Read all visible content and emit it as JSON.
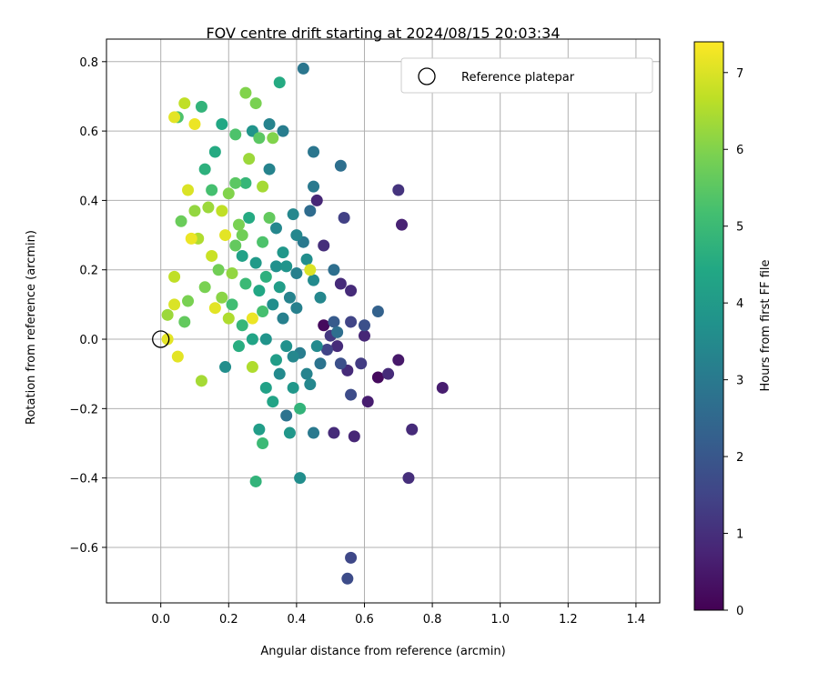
{
  "chart_data": {
    "type": "scatter",
    "title": "FOV centre drift starting at 2024/08/15 20:03:34",
    "xlabel": "Angular distance from reference (arcmin)",
    "ylabel": "Rotation from reference (arcmin)",
    "colorbar_label": "Hours from first FF file",
    "colormap": "viridis",
    "xlim": [
      -0.16,
      1.47
    ],
    "ylim": [
      -0.76,
      0.865
    ],
    "clim": [
      0,
      7.4
    ],
    "xticks": [
      0.0,
      0.2,
      0.4,
      0.6,
      0.8,
      1.0,
      1.2,
      1.4
    ],
    "xtick_labels": [
      "0.0",
      "0.2",
      "0.4",
      "0.6",
      "0.8",
      "1.0",
      "1.2",
      "1.4"
    ],
    "yticks": [
      -0.6,
      -0.4,
      -0.2,
      0.0,
      0.2,
      0.4,
      0.6,
      0.8
    ],
    "ytick_labels": [
      "−0.6",
      "−0.4",
      "−0.2",
      "0.0",
      "0.2",
      "0.4",
      "0.6",
      "0.8"
    ],
    "cticks": [
      0,
      1,
      2,
      3,
      4,
      5,
      6,
      7
    ],
    "ctick_labels": [
      "0",
      "1",
      "2",
      "3",
      "4",
      "5",
      "6",
      "7"
    ],
    "grid": true,
    "legend": {
      "placement": "top-right",
      "entries": [
        "Reference platepar"
      ]
    },
    "reference_point": {
      "x": 0.0,
      "y": 0.0
    },
    "series": [
      {
        "name": "",
        "points": [
          {
            "x": 0.83,
            "y": -0.14,
            "h": 0.6
          },
          {
            "x": 0.74,
            "y": -0.26,
            "h": 0.9
          },
          {
            "x": 0.73,
            "y": -0.4,
            "h": 1.0
          },
          {
            "x": 0.7,
            "y": 0.43,
            "h": 1.1
          },
          {
            "x": 0.71,
            "y": 0.33,
            "h": 0.7
          },
          {
            "x": 0.7,
            "y": -0.06,
            "h": 0.5
          },
          {
            "x": 0.67,
            "y": -0.1,
            "h": 0.9
          },
          {
            "x": 0.64,
            "y": -0.11,
            "h": 0.2
          },
          {
            "x": 0.64,
            "y": 0.08,
            "h": 2.3
          },
          {
            "x": 0.61,
            "y": -0.18,
            "h": 0.6
          },
          {
            "x": 0.6,
            "y": 0.01,
            "h": 0.8
          },
          {
            "x": 0.6,
            "y": 0.04,
            "h": 1.8
          },
          {
            "x": 0.59,
            "y": -0.07,
            "h": 1.3
          },
          {
            "x": 0.57,
            "y": -0.28,
            "h": 0.8
          },
          {
            "x": 0.56,
            "y": -0.16,
            "h": 1.7
          },
          {
            "x": 0.56,
            "y": 0.05,
            "h": 1.5
          },
          {
            "x": 0.56,
            "y": 0.14,
            "h": 0.9
          },
          {
            "x": 0.55,
            "y": -0.69,
            "h": 1.7
          },
          {
            "x": 0.56,
            "y": -0.63,
            "h": 1.6
          },
          {
            "x": 0.55,
            "y": -0.09,
            "h": 0.9
          },
          {
            "x": 0.53,
            "y": -0.07,
            "h": 1.8
          },
          {
            "x": 0.52,
            "y": -0.02,
            "h": 0.9
          },
          {
            "x": 0.52,
            "y": 0.02,
            "h": 2.7
          },
          {
            "x": 0.51,
            "y": 0.05,
            "h": 2.1
          },
          {
            "x": 0.51,
            "y": -0.27,
            "h": 0.9
          },
          {
            "x": 0.53,
            "y": 0.16,
            "h": 0.9
          },
          {
            "x": 0.53,
            "y": 0.5,
            "h": 2.7
          },
          {
            "x": 0.54,
            "y": 0.35,
            "h": 1.4
          },
          {
            "x": 0.51,
            "y": 0.2,
            "h": 2.7
          },
          {
            "x": 0.5,
            "y": 0.01,
            "h": 1.2
          },
          {
            "x": 0.49,
            "y": -0.03,
            "h": 1.5
          },
          {
            "x": 0.48,
            "y": 0.04,
            "h": 0.2
          },
          {
            "x": 0.48,
            "y": 0.27,
            "h": 1.0
          },
          {
            "x": 0.47,
            "y": -0.07,
            "h": 2.8
          },
          {
            "x": 0.46,
            "y": -0.02,
            "h": 3.5
          },
          {
            "x": 0.46,
            "y": 0.4,
            "h": 0.8
          },
          {
            "x": 0.45,
            "y": 0.54,
            "h": 2.9
          },
          {
            "x": 0.45,
            "y": 0.44,
            "h": 3.0
          },
          {
            "x": 0.44,
            "y": 0.37,
            "h": 2.6
          },
          {
            "x": 0.45,
            "y": 0.17,
            "h": 3.5
          },
          {
            "x": 0.44,
            "y": 0.2,
            "h": 7.0
          },
          {
            "x": 0.45,
            "y": -0.27,
            "h": 3.0
          },
          {
            "x": 0.44,
            "y": -0.13,
            "h": 3.4
          },
          {
            "x": 0.43,
            "y": -0.1,
            "h": 3.3
          },
          {
            "x": 0.42,
            "y": 0.78,
            "h": 2.9
          },
          {
            "x": 0.43,
            "y": 0.23,
            "h": 3.6
          },
          {
            "x": 0.41,
            "y": -0.4,
            "h": 3.6
          },
          {
            "x": 0.41,
            "y": -0.2,
            "h": 4.8
          },
          {
            "x": 0.41,
            "y": -0.04,
            "h": 3.1
          },
          {
            "x": 0.4,
            "y": 0.09,
            "h": 3.2
          },
          {
            "x": 0.4,
            "y": 0.3,
            "h": 3.4
          },
          {
            "x": 0.39,
            "y": 0.36,
            "h": 3.4
          },
          {
            "x": 0.39,
            "y": -0.14,
            "h": 3.9
          },
          {
            "x": 0.38,
            "y": -0.27,
            "h": 3.9
          },
          {
            "x": 0.37,
            "y": -0.22,
            "h": 2.8
          },
          {
            "x": 0.37,
            "y": -0.02,
            "h": 3.7
          },
          {
            "x": 0.37,
            "y": 0.21,
            "h": 3.8
          },
          {
            "x": 0.36,
            "y": 0.06,
            "h": 3.2
          },
          {
            "x": 0.36,
            "y": 0.6,
            "h": 3.1
          },
          {
            "x": 0.35,
            "y": 0.74,
            "h": 4.5
          },
          {
            "x": 0.35,
            "y": 0.15,
            "h": 4.1
          },
          {
            "x": 0.34,
            "y": 0.32,
            "h": 3.4
          },
          {
            "x": 0.34,
            "y": -0.06,
            "h": 4.1
          },
          {
            "x": 0.33,
            "y": -0.18,
            "h": 4.3
          },
          {
            "x": 0.32,
            "y": 0.62,
            "h": 3.3
          },
          {
            "x": 0.32,
            "y": 0.49,
            "h": 3.3
          },
          {
            "x": 0.32,
            "y": 0.35,
            "h": 5.6
          },
          {
            "x": 0.31,
            "y": 0.18,
            "h": 4.7
          },
          {
            "x": 0.31,
            "y": 0.0,
            "h": 3.8
          },
          {
            "x": 0.31,
            "y": -0.14,
            "h": 4.2
          },
          {
            "x": 0.3,
            "y": -0.3,
            "h": 5.0
          },
          {
            "x": 0.29,
            "y": -0.26,
            "h": 4.1
          },
          {
            "x": 0.3,
            "y": 0.44,
            "h": 6.4
          },
          {
            "x": 0.3,
            "y": 0.28,
            "h": 5.3
          },
          {
            "x": 0.29,
            "y": 0.58,
            "h": 5.5
          },
          {
            "x": 0.28,
            "y": 0.68,
            "h": 5.9
          },
          {
            "x": 0.28,
            "y": -0.41,
            "h": 4.8
          },
          {
            "x": 0.27,
            "y": -0.08,
            "h": 6.5
          },
          {
            "x": 0.27,
            "y": 0.06,
            "h": 7.2
          },
          {
            "x": 0.26,
            "y": 0.35,
            "h": 4.5
          },
          {
            "x": 0.25,
            "y": 0.71,
            "h": 6.0
          },
          {
            "x": 0.24,
            "y": 0.04,
            "h": 4.9
          },
          {
            "x": 0.24,
            "y": 0.24,
            "h": 4.2
          },
          {
            "x": 0.23,
            "y": 0.33,
            "h": 5.9
          },
          {
            "x": 0.22,
            "y": 0.59,
            "h": 5.3
          },
          {
            "x": 0.22,
            "y": 0.45,
            "h": 5.5
          },
          {
            "x": 0.21,
            "y": 0.1,
            "h": 5.1
          },
          {
            "x": 0.2,
            "y": 0.06,
            "h": 6.5
          },
          {
            "x": 0.19,
            "y": 0.3,
            "h": 7.1
          },
          {
            "x": 0.19,
            "y": -0.08,
            "h": 3.6
          },
          {
            "x": 0.18,
            "y": 0.62,
            "h": 4.4
          },
          {
            "x": 0.18,
            "y": 0.37,
            "h": 6.7
          },
          {
            "x": 0.17,
            "y": 0.2,
            "h": 5.8
          },
          {
            "x": 0.16,
            "y": 0.54,
            "h": 4.5
          },
          {
            "x": 0.16,
            "y": 0.09,
            "h": 7.1
          },
          {
            "x": 0.15,
            "y": 0.43,
            "h": 5.2
          },
          {
            "x": 0.14,
            "y": 0.38,
            "h": 6.3
          },
          {
            "x": 0.13,
            "y": 0.49,
            "h": 4.7
          },
          {
            "x": 0.13,
            "y": 0.15,
            "h": 5.9
          },
          {
            "x": 0.12,
            "y": 0.67,
            "h": 4.8
          },
          {
            "x": 0.12,
            "y": -0.12,
            "h": 6.4
          },
          {
            "x": 0.11,
            "y": 0.29,
            "h": 6.5
          },
          {
            "x": 0.1,
            "y": 0.62,
            "h": 7.2
          },
          {
            "x": 0.1,
            "y": 0.37,
            "h": 6.2
          },
          {
            "x": 0.09,
            "y": 0.29,
            "h": 7.2
          },
          {
            "x": 0.08,
            "y": 0.43,
            "h": 7.0
          },
          {
            "x": 0.08,
            "y": 0.11,
            "h": 5.9
          },
          {
            "x": 0.07,
            "y": 0.68,
            "h": 6.7
          },
          {
            "x": 0.07,
            "y": 0.05,
            "h": 5.6
          },
          {
            "x": 0.06,
            "y": 0.34,
            "h": 5.7
          },
          {
            "x": 0.05,
            "y": -0.05,
            "h": 7.1
          },
          {
            "x": 0.05,
            "y": 0.64,
            "h": 5.3
          },
          {
            "x": 0.04,
            "y": 0.64,
            "h": 7.1
          },
          {
            "x": 0.04,
            "y": 0.18,
            "h": 6.7
          },
          {
            "x": 0.04,
            "y": 0.1,
            "h": 7.0
          },
          {
            "x": 0.02,
            "y": 0.07,
            "h": 6.3
          },
          {
            "x": 0.02,
            "y": 0.0,
            "h": 7.1
          },
          {
            "x": 0.34,
            "y": 0.21,
            "h": 3.7
          },
          {
            "x": 0.36,
            "y": 0.25,
            "h": 3.9
          },
          {
            "x": 0.28,
            "y": 0.22,
            "h": 4.0
          },
          {
            "x": 0.25,
            "y": 0.16,
            "h": 5.0
          },
          {
            "x": 0.22,
            "y": 0.27,
            "h": 5.6
          },
          {
            "x": 0.26,
            "y": 0.52,
            "h": 6.3
          },
          {
            "x": 0.2,
            "y": 0.42,
            "h": 6.0
          },
          {
            "x": 0.15,
            "y": 0.24,
            "h": 6.8
          },
          {
            "x": 0.24,
            "y": 0.3,
            "h": 5.8
          },
          {
            "x": 0.38,
            "y": 0.12,
            "h": 3.3
          },
          {
            "x": 0.42,
            "y": 0.28,
            "h": 3.0
          },
          {
            "x": 0.33,
            "y": 0.1,
            "h": 3.6
          },
          {
            "x": 0.29,
            "y": 0.14,
            "h": 4.4
          },
          {
            "x": 0.4,
            "y": 0.19,
            "h": 3.2
          },
          {
            "x": 0.47,
            "y": 0.12,
            "h": 3.4
          },
          {
            "x": 0.35,
            "y": -0.1,
            "h": 3.5
          },
          {
            "x": 0.39,
            "y": -0.05,
            "h": 3.4
          },
          {
            "x": 0.27,
            "y": 0.0,
            "h": 4.3
          },
          {
            "x": 0.23,
            "y": -0.02,
            "h": 4.6
          },
          {
            "x": 0.3,
            "y": 0.08,
            "h": 5.2
          },
          {
            "x": 0.18,
            "y": 0.12,
            "h": 6.1
          },
          {
            "x": 0.21,
            "y": 0.19,
            "h": 6.2
          },
          {
            "x": 0.25,
            "y": 0.45,
            "h": 4.9
          },
          {
            "x": 0.27,
            "y": 0.6,
            "h": 3.8
          },
          {
            "x": 0.33,
            "y": 0.58,
            "h": 6.0
          }
        ]
      }
    ]
  }
}
